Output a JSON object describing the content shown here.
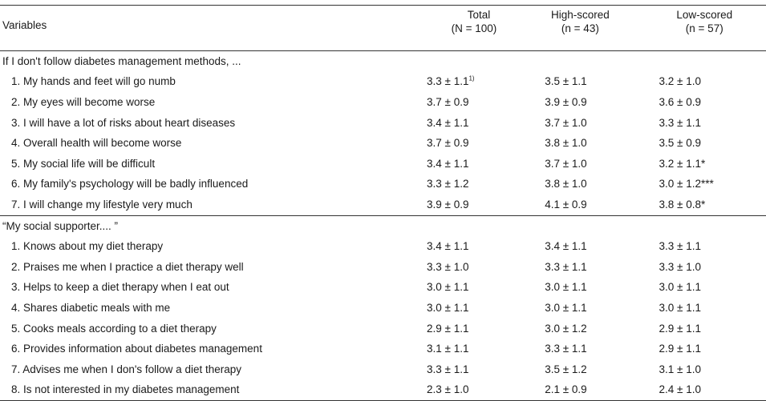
{
  "header": {
    "variables": "Variables",
    "total_label": "Total",
    "total_n": "(N = 100)",
    "high_label": "High-scored",
    "high_n": "(n = 43)",
    "low_label": "Low-scored",
    "low_n": "(n = 57)"
  },
  "section1": {
    "title": "If I don't follow diabetes management methods, ...",
    "rows": [
      {
        "label": "1. My hands and feet will go numb",
        "total": "3.3 ± 1.1",
        "total_note": "1)",
        "high": "3.5 ± 1.1",
        "low": "3.2 ± 1.0"
      },
      {
        "label": "2. My eyes will become worse",
        "total": "3.7 ± 0.9",
        "high": "3.9 ± 0.9",
        "low": "3.6 ± 0.9"
      },
      {
        "label": "3. I will have a lot of risks about heart diseases",
        "total": "3.4 ± 1.1",
        "high": "3.7 ± 1.0",
        "low": "3.3 ± 1.1"
      },
      {
        "label": "4. Overall health will become worse",
        "total": "3.7 ± 0.9",
        "high": "3.8 ± 1.0",
        "low": "3.5 ± 0.9"
      },
      {
        "label": "5. My social life will be difficult",
        "total": "3.4 ± 1.1",
        "high": "3.7 ± 1.0",
        "low": "3.2 ± 1.1*"
      },
      {
        "label": "6. My family's psychology will be badly influenced",
        "total": "3.3 ± 1.2",
        "high": "3.8 ± 1.0",
        "low": "3.0 ± 1.2***"
      },
      {
        "label": "7. I will change my lifestyle very much",
        "total": "3.9 ± 0.9",
        "high": "4.1 ± 0.9",
        "low": "3.8 ± 0.8*"
      }
    ]
  },
  "section2": {
    "title": "“My social supporter.... ”",
    "rows": [
      {
        "label": "1. Knows about my diet therapy",
        "total": "3.4 ± 1.1",
        "high": "3.4 ± 1.1",
        "low": "3.3 ± 1.1"
      },
      {
        "label": "2. Praises me when I practice a diet therapy well",
        "total": "3.3 ± 1.0",
        "high": "3.3 ± 1.1",
        "low": "3.3 ± 1.0"
      },
      {
        "label": "3. Helps to keep a diet therapy when I eat out",
        "total": "3.0 ± 1.1",
        "high": "3.0 ± 1.1",
        "low": "3.0 ± 1.1"
      },
      {
        "label": "4. Shares diabetic meals with me",
        "total": "3.0 ± 1.1",
        "high": "3.0 ± 1.1",
        "low": "3.0 ± 1.1"
      },
      {
        "label": "5. Cooks meals according to a diet therapy",
        "total": "2.9 ± 1.1",
        "high": "3.0 ± 1.2",
        "low": "2.9 ± 1.1"
      },
      {
        "label": "6. Provides information about diabetes management",
        "total": "3.1 ± 1.1",
        "high": "3.3 ± 1.1",
        "low": "2.9 ± 1.1"
      },
      {
        "label": "7. Advises me when I don's follow a diet therapy",
        "total": "3.3 ± 1.1",
        "high": "3.5 ± 1.2",
        "low": "3.1 ± 1.0"
      },
      {
        "label": "8. Is not interested in my diabetes management",
        "total": "2.3 ± 1.0",
        "high": "2.1 ± 0.9",
        "low": "2.4 ± 1.0"
      }
    ]
  }
}
